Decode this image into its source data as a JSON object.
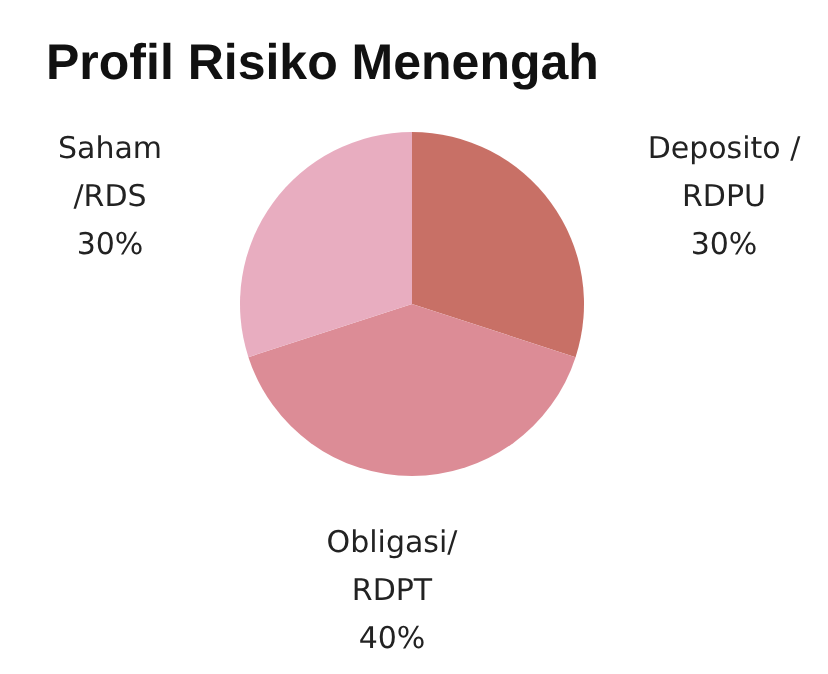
{
  "chart_data": {
    "type": "pie",
    "title": "Profil Risiko Menengah",
    "categories": [
      "Deposito / RDPU",
      "Obligasi/ RDPT",
      "Saham /RDS"
    ],
    "values": [
      30,
      40,
      30
    ],
    "colors": [
      "#c87066",
      "#dc8c96",
      "#e8adc0"
    ],
    "value_labels": [
      "30%",
      "40%",
      "30%"
    ],
    "legend": false
  }
}
